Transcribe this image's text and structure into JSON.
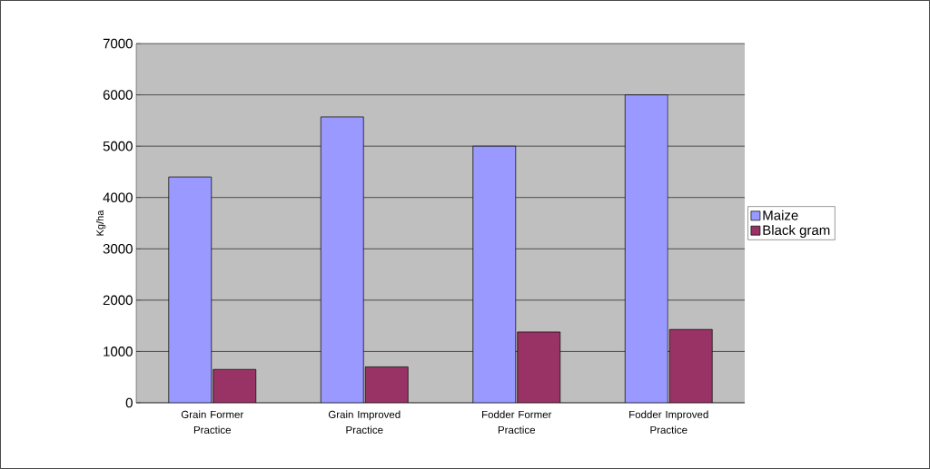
{
  "chart_data": {
    "type": "bar",
    "ylabel": "Kg/ha",
    "categories": [
      "Grain Former Practice",
      "Grain Improved Practice",
      "Fodder Former Practice",
      "Fodder Improved Practice"
    ],
    "series": [
      {
        "name": "Maize",
        "color": "#9999ff",
        "values": [
          4400,
          5570,
          5000,
          6000
        ]
      },
      {
        "name": "Black gram",
        "color": "#993366",
        "values": [
          650,
          700,
          1380,
          1430
        ]
      }
    ],
    "ylim": [
      0,
      7000
    ],
    "yticks": [
      0,
      1000,
      2000,
      3000,
      4000,
      5000,
      6000,
      7000
    ],
    "grid": "y",
    "legend": "right"
  }
}
